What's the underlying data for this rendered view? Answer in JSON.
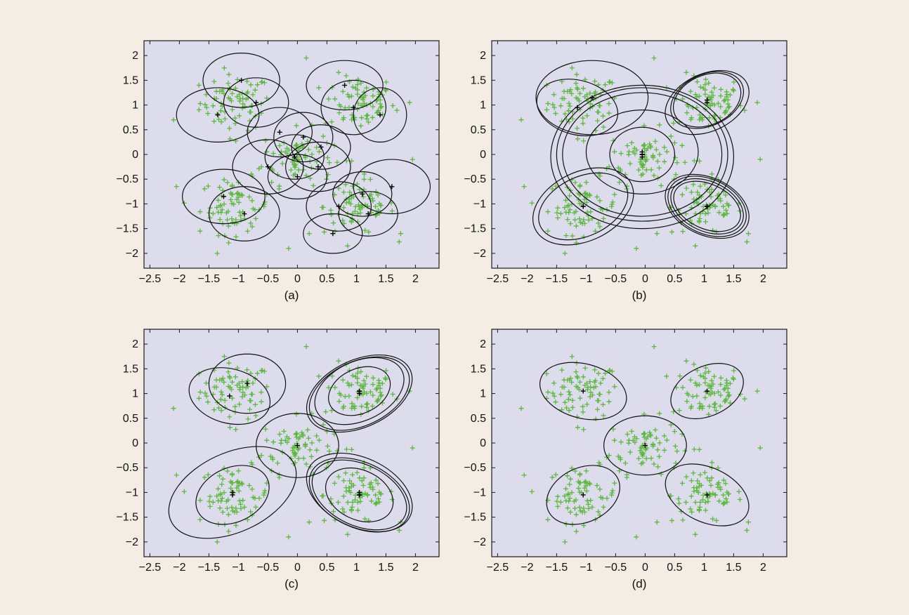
{
  "chart_data": [
    {
      "type": "scatter",
      "panel_label": "(a)",
      "xlim": [
        -2.5,
        2.5
      ],
      "ylim": [
        -2.3,
        2.3
      ],
      "xticks": [
        -2.5,
        -2,
        -1.5,
        -1,
        -0.5,
        0,
        0.5,
        1,
        1.5,
        2
      ],
      "xtick_labels": [
        "−2.5",
        "−2",
        "−1.5",
        "−1",
        "−0.5",
        "0",
        "0.5",
        "1",
        "1.5",
        "2"
      ],
      "yticks": [
        2,
        1.5,
        1,
        0.5,
        0,
        -0.5,
        -1,
        -1.5,
        -2
      ],
      "ytick_labels": [
        "2",
        "1.5",
        "1",
        "0.5",
        "0",
        "−0.5",
        "−1",
        "−1.5",
        "−2"
      ],
      "point_color": "#5cb83c",
      "marker": "+",
      "components": [
        {
          "mean": [
            -0.95,
            1.5
          ],
          "rx": 0.65,
          "ry": 0.55,
          "angle": 0
        },
        {
          "mean": [
            -0.7,
            1.05
          ],
          "rx": 0.55,
          "ry": 0.5,
          "angle": 0
        },
        {
          "mean": [
            -1.35,
            0.8
          ],
          "rx": 0.7,
          "ry": 0.55,
          "angle": 0
        },
        {
          "mean": [
            0.8,
            1.4
          ],
          "rx": 0.65,
          "ry": 0.5,
          "angle": 0
        },
        {
          "mean": [
            0.95,
            0.95
          ],
          "rx": 0.55,
          "ry": 0.55,
          "angle": 0
        },
        {
          "mean": [
            1.4,
            0.8
          ],
          "rx": 0.45,
          "ry": 0.55,
          "angle": 0
        },
        {
          "mean": [
            -0.3,
            0.45
          ],
          "rx": 0.55,
          "ry": 0.5,
          "angle": 0
        },
        {
          "mean": [
            0.1,
            0.35
          ],
          "rx": 0.5,
          "ry": 0.5,
          "angle": 0
        },
        {
          "mean": [
            -0.05,
            -0.05
          ],
          "rx": 0.5,
          "ry": 0.45,
          "angle": 0
        },
        {
          "mean": [
            0.4,
            0.15
          ],
          "rx": 0.5,
          "ry": 0.45,
          "angle": 0
        },
        {
          "mean": [
            -0.5,
            -0.25
          ],
          "rx": 0.6,
          "ry": 0.55,
          "angle": 0
        },
        {
          "mean": [
            0.35,
            -0.25
          ],
          "rx": 0.55,
          "ry": 0.5,
          "angle": 0
        },
        {
          "mean": [
            0.0,
            -0.45
          ],
          "rx": 0.5,
          "ry": 0.45,
          "angle": 0
        },
        {
          "mean": [
            -1.25,
            -0.85
          ],
          "rx": 0.7,
          "ry": 0.55,
          "angle": 0
        },
        {
          "mean": [
            -0.9,
            -1.2
          ],
          "rx": 0.6,
          "ry": 0.55,
          "angle": 0
        },
        {
          "mean": [
            1.6,
            -0.65
          ],
          "rx": 0.65,
          "ry": 0.55,
          "angle": 0
        },
        {
          "mean": [
            1.1,
            -0.8
          ],
          "rx": 0.5,
          "ry": 0.45,
          "angle": 0
        },
        {
          "mean": [
            0.7,
            -1.05
          ],
          "rx": 0.55,
          "ry": 0.5,
          "angle": 0
        },
        {
          "mean": [
            1.2,
            -1.2
          ],
          "rx": 0.5,
          "ry": 0.45,
          "angle": 0
        },
        {
          "mean": [
            0.6,
            -1.6
          ],
          "rx": 0.5,
          "ry": 0.4,
          "angle": 0
        }
      ]
    },
    {
      "type": "scatter",
      "panel_label": "(b)",
      "xlim": [
        -2.5,
        2.5
      ],
      "ylim": [
        -2.3,
        2.3
      ],
      "xticks": [
        -2.5,
        -2,
        -1.5,
        -1,
        -0.5,
        0,
        0.5,
        1,
        1.5,
        2
      ],
      "xtick_labels": [
        "−2.5",
        "−2",
        "−1.5",
        "−1",
        "−0.5",
        "0",
        "0.5",
        "1",
        "1.5",
        "2"
      ],
      "yticks": [
        2,
        1.5,
        1,
        0.5,
        0,
        -0.5,
        -1,
        -1.5,
        -2
      ],
      "ytick_labels": [
        "2",
        "1.5",
        "1",
        "0.5",
        "0",
        "−0.5",
        "−1",
        "−1.5",
        "−2"
      ],
      "point_color": "#5cb83c",
      "marker": "+",
      "components": [
        {
          "mean": [
            -0.9,
            1.15
          ],
          "rx": 0.95,
          "ry": 0.75,
          "angle": 0
        },
        {
          "mean": [
            -1.15,
            0.95
          ],
          "rx": 0.7,
          "ry": 0.55,
          "angle": 15
        },
        {
          "mean": [
            1.05,
            1.1
          ],
          "rx": 0.6,
          "ry": 0.5,
          "angle": -25
        },
        {
          "mean": [
            1.05,
            1.1
          ],
          "rx": 0.65,
          "ry": 0.52,
          "angle": -25
        },
        {
          "mean": [
            1.05,
            1.05
          ],
          "rx": 0.75,
          "ry": 0.58,
          "angle": -25
        },
        {
          "mean": [
            -0.05,
            0.0
          ],
          "rx": 0.55,
          "ry": 0.55,
          "angle": 0
        },
        {
          "mean": [
            -0.05,
            0.05
          ],
          "rx": 0.95,
          "ry": 0.85,
          "angle": 0
        },
        {
          "mean": [
            -0.05,
            0.0
          ],
          "rx": 1.35,
          "ry": 1.25,
          "angle": 0
        },
        {
          "mean": [
            -0.05,
            0.0
          ],
          "rx": 1.45,
          "ry": 1.35,
          "angle": 0
        },
        {
          "mean": [
            -0.05,
            -0.05
          ],
          "rx": 1.55,
          "ry": 1.45,
          "angle": 0
        },
        {
          "mean": [
            -1.05,
            -1.05
          ],
          "rx": 0.8,
          "ry": 0.6,
          "angle": -25
        },
        {
          "mean": [
            -1.05,
            -1.05
          ],
          "rx": 0.9,
          "ry": 0.7,
          "angle": -25
        },
        {
          "mean": [
            1.05,
            -1.05
          ],
          "rx": 0.6,
          "ry": 0.45,
          "angle": 25
        },
        {
          "mean": [
            1.05,
            -1.05
          ],
          "rx": 0.65,
          "ry": 0.5,
          "angle": 25
        },
        {
          "mean": [
            1.05,
            -1.05
          ],
          "rx": 0.7,
          "ry": 0.55,
          "angle": 25
        },
        {
          "mean": [
            1.05,
            -1.05
          ],
          "rx": 0.75,
          "ry": 0.58,
          "angle": 25
        }
      ]
    },
    {
      "type": "scatter",
      "panel_label": "(c)",
      "xlim": [
        -2.5,
        2.5
      ],
      "ylim": [
        -2.3,
        2.3
      ],
      "xticks": [
        -2.5,
        -2,
        -1.5,
        -1,
        -0.5,
        0,
        0.5,
        1,
        1.5,
        2
      ],
      "xtick_labels": [
        "−2.5",
        "−2",
        "−1.5",
        "−1",
        "−0.5",
        "0",
        "0.5",
        "1",
        "1.5",
        "2"
      ],
      "yticks": [
        2,
        1.5,
        1,
        0.5,
        0,
        -0.5,
        -1,
        -1.5,
        -2
      ],
      "ytick_labels": [
        "2",
        "1.5",
        "1",
        "0.5",
        "0",
        "−0.5",
        "−1",
        "−1.5",
        "−2"
      ],
      "point_color": "#5cb83c",
      "marker": "+",
      "components": [
        {
          "mean": [
            -0.85,
            1.2
          ],
          "rx": 0.65,
          "ry": 0.6,
          "angle": 0
        },
        {
          "mean": [
            -1.15,
            0.95
          ],
          "rx": 0.7,
          "ry": 0.55,
          "angle": 15
        },
        {
          "mean": [
            1.05,
            1.05
          ],
          "rx": 0.55,
          "ry": 0.45,
          "angle": -25
        },
        {
          "mean": [
            1.05,
            1.05
          ],
          "rx": 0.8,
          "ry": 0.6,
          "angle": -25
        },
        {
          "mean": [
            1.05,
            1.0
          ],
          "rx": 0.9,
          "ry": 0.65,
          "angle": -25
        },
        {
          "mean": [
            1.05,
            1.0
          ],
          "rx": 0.95,
          "ry": 0.68,
          "angle": -25
        },
        {
          "mean": [
            0.0,
            -0.05
          ],
          "rx": 0.7,
          "ry": 0.65,
          "angle": 0
        },
        {
          "mean": [
            -1.1,
            -1.05
          ],
          "rx": 0.65,
          "ry": 0.55,
          "angle": -25
        },
        {
          "mean": [
            -1.1,
            -1.0
          ],
          "rx": 1.15,
          "ry": 0.8,
          "angle": -25
        },
        {
          "mean": [
            1.05,
            -1.05
          ],
          "rx": 0.6,
          "ry": 0.5,
          "angle": 25
        },
        {
          "mean": [
            1.05,
            -1.05
          ],
          "rx": 0.85,
          "ry": 0.62,
          "angle": 25
        },
        {
          "mean": [
            1.05,
            -1.05
          ],
          "rx": 0.9,
          "ry": 0.66,
          "angle": 25
        },
        {
          "mean": [
            1.05,
            -1.0
          ],
          "rx": 0.95,
          "ry": 0.7,
          "angle": 25
        }
      ]
    },
    {
      "type": "scatter",
      "panel_label": "(d)",
      "xlim": [
        -2.5,
        2.5
      ],
      "ylim": [
        -2.3,
        2.3
      ],
      "xticks": [
        -2.5,
        -2,
        -1.5,
        -1,
        -0.5,
        0,
        0.5,
        1,
        1.5,
        2
      ],
      "xtick_labels": [
        "−2.5",
        "−2",
        "−1.5",
        "−1",
        "−0.5",
        "0",
        "0.5",
        "1",
        "1.5",
        "2"
      ],
      "yticks": [
        2,
        1.5,
        1,
        0.5,
        0,
        -0.5,
        -1,
        -1.5,
        -2
      ],
      "ytick_labels": [
        "2",
        "1.5",
        "1",
        "0.5",
        "0",
        "−0.5",
        "−1",
        "−1.5",
        "−2"
      ],
      "point_color": "#5cb83c",
      "marker": "+",
      "components": [
        {
          "mean": [
            -1.05,
            1.05
          ],
          "rx": 0.75,
          "ry": 0.55,
          "angle": 15
        },
        {
          "mean": [
            1.05,
            1.05
          ],
          "rx": 0.65,
          "ry": 0.5,
          "angle": -25
        },
        {
          "mean": [
            0.0,
            -0.05
          ],
          "rx": 0.7,
          "ry": 0.6,
          "angle": 0
        },
        {
          "mean": [
            -1.05,
            -1.05
          ],
          "rx": 0.65,
          "ry": 0.55,
          "angle": -25
        },
        {
          "mean": [
            1.05,
            -1.05
          ],
          "rx": 0.75,
          "ry": 0.55,
          "angle": 25
        }
      ]
    }
  ],
  "data_clusters": [
    {
      "center": [
        -1.05,
        1.05
      ],
      "count": 75
    },
    {
      "center": [
        1.05,
        1.05
      ],
      "count": 75
    },
    {
      "center": [
        0.0,
        -0.05
      ],
      "count": 75
    },
    {
      "center": [
        -1.05,
        -1.05
      ],
      "count": 75
    },
    {
      "center": [
        1.05,
        -1.05
      ],
      "count": 75
    }
  ],
  "outlier_points": [
    [
      -2.1,
      0.7
    ],
    [
      -2.05,
      -0.65
    ],
    [
      0.15,
      1.95
    ],
    [
      1.9,
      1.05
    ],
    [
      1.95,
      -0.1
    ],
    [
      0.2,
      -1.6
    ],
    [
      -0.15,
      -1.9
    ],
    [
      0.85,
      -1.85
    ],
    [
      -1.65,
      -1.55
    ],
    [
      1.75,
      -1.6
    ]
  ]
}
